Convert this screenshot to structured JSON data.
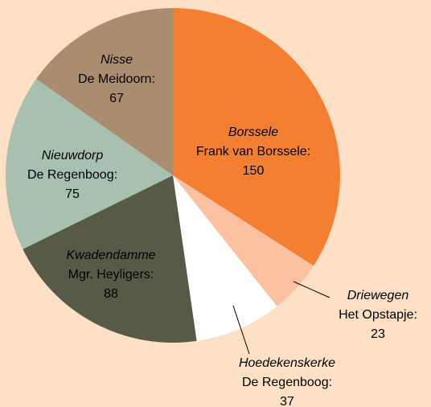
{
  "chart_data": {
    "type": "pie",
    "categories": [
      "Borssele",
      "Driewegen",
      "Hoedekenskerke",
      "Kwadendamme",
      "Nieuwdorp",
      "Nisse"
    ],
    "schools": [
      "Frank van Borssele:",
      "Het Opstapje:",
      "De Regenboog:",
      "Mgr. Heyligers:",
      "De Regenboog:",
      "De Meidoorn:"
    ],
    "values": [
      150,
      23,
      37,
      88,
      75,
      67
    ],
    "colors": [
      "#f47f30",
      "#fbc1a0",
      "#ffffff",
      "#585a48",
      "#a8c0b0",
      "#a98d6e"
    ]
  }
}
